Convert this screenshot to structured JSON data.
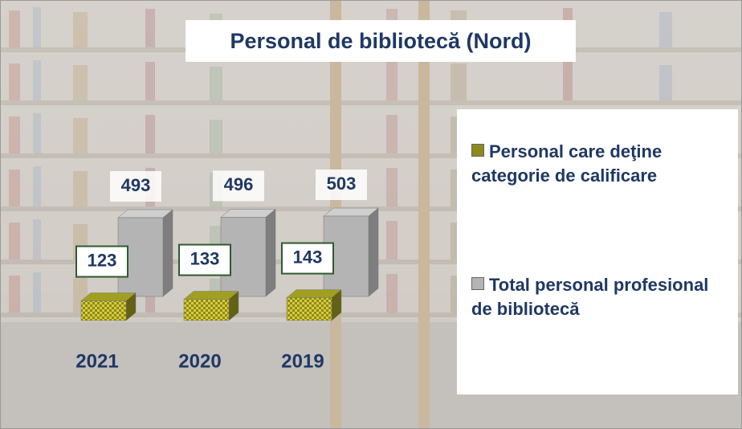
{
  "chart_data": {
    "type": "bar3d",
    "title": "Personal de bibliotecă (Nord)",
    "categories": [
      "2021",
      "2020",
      "2019"
    ],
    "series": [
      {
        "name": "Personal care deţine categorie de calificare",
        "color": "#8c8a1c",
        "values": [
          123,
          133,
          143
        ]
      },
      {
        "name": "Total personal profesional de bibliotecă",
        "color": "#b4b4b4",
        "values": [
          493,
          496,
          503
        ]
      }
    ]
  }
}
